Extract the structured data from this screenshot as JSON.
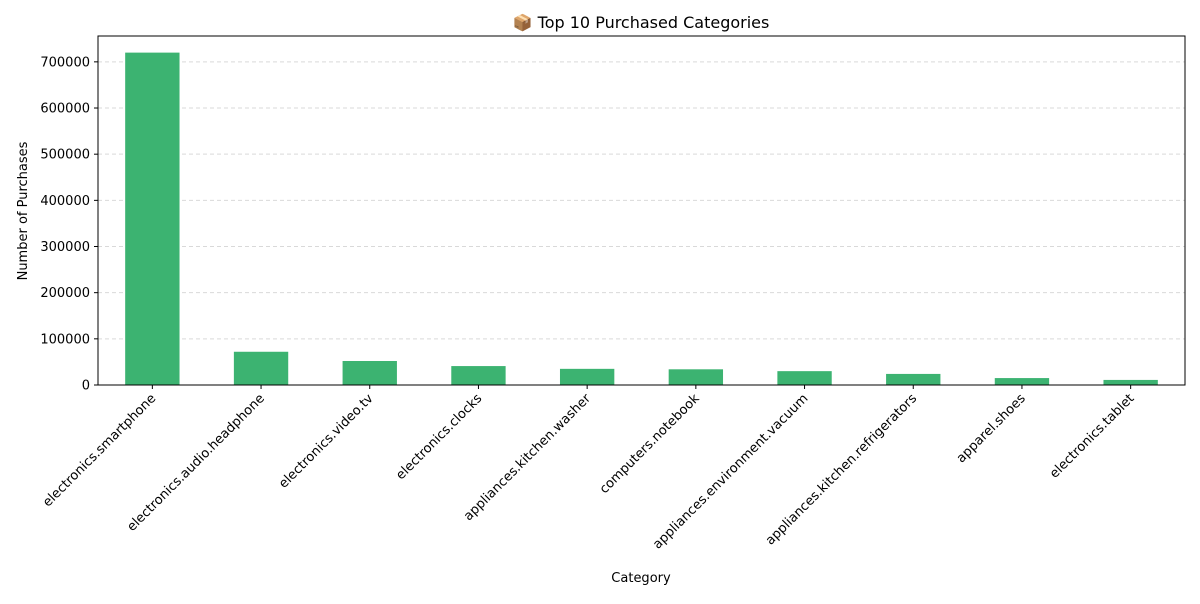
{
  "chart_data": {
    "type": "bar",
    "title": "📦 Top 10 Purchased Categories",
    "xlabel": "Category",
    "ylabel": "Number of Purchases",
    "categories": [
      "electronics.smartphone",
      "electronics.audio.headphone",
      "electronics.video.tv",
      "electronics.clocks",
      "appliances.kitchen.washer",
      "computers.notebook",
      "appliances.environment.vacuum",
      "appliances.kitchen.refrigerators",
      "apparel.shoes",
      "electronics.tablet"
    ],
    "values": [
      720000,
      72000,
      52000,
      41000,
      35000,
      34000,
      30000,
      24000,
      15000,
      11000
    ],
    "ylim": [
      0,
      756000
    ],
    "yticks": [
      "0",
      "100000",
      "200000",
      "300000",
      "400000",
      "500000",
      "600000",
      "700000"
    ],
    "grid": "y-dashed",
    "bar_color": "#3cb371",
    "legend": "none"
  }
}
